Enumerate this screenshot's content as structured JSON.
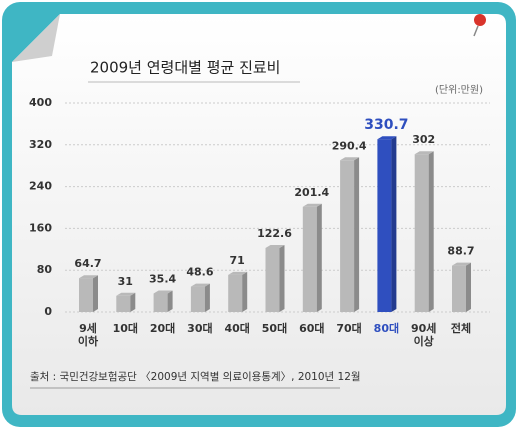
{
  "chart_data": {
    "type": "bar",
    "title": "2009년 연령대별 평균 진료비",
    "unit_label": "(단위:만원)",
    "source": "출처 : 국민건강보험공단 〈2009년 지역별 의료이용통계〉, 2010년 12월",
    "categories": [
      "9세\n이하",
      "10대",
      "20대",
      "30대",
      "40대",
      "50대",
      "60대",
      "70대",
      "80대",
      "90세\n이상",
      "전체"
    ],
    "values": [
      64.7,
      31,
      35.4,
      48.6,
      71,
      122.6,
      201.4,
      290.4,
      330.7,
      302,
      88.7
    ],
    "colors": [
      "#b9b9b9",
      "#b9b9b9",
      "#b9b9b9",
      "#b9b9b9",
      "#b9b9b9",
      "#b9b9b9",
      "#b9b9b9",
      "#b9b9b9",
      "#2f4fbf",
      "#b9b9b9",
      "#b9b9b9"
    ],
    "ylim": [
      0,
      400
    ],
    "yticks": [
      0,
      80,
      160,
      240,
      320,
      400
    ],
    "grid": true
  }
}
